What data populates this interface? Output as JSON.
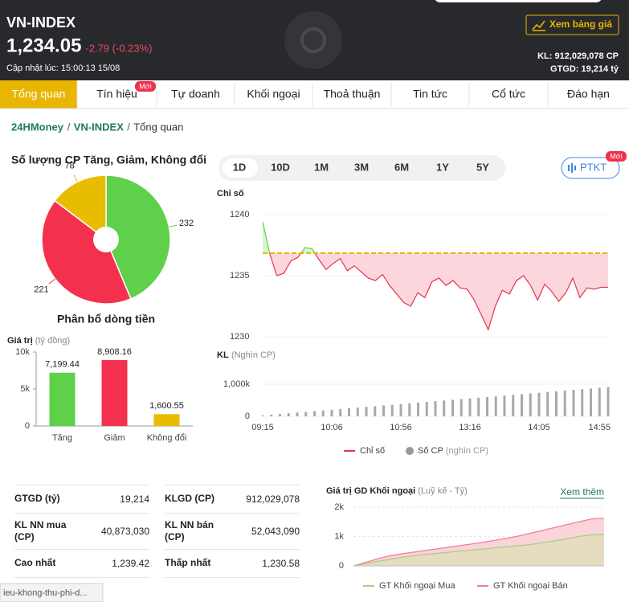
{
  "header": {
    "title": "VN-INDEX",
    "price": "1,234.05",
    "change": "-2.79 (-0.23%)",
    "updated": "Cập nhật lúc: 15:00:13 15/08",
    "button": "Xem bảng giá",
    "volume": "KL: 912,029,078 CP",
    "value": "GTGD: 19,214 tỷ"
  },
  "tabs": [
    "Tổng quan",
    "Tín hiệu",
    "Tự doanh",
    "Khối ngoại",
    "Thoả thuận",
    "Tin tức",
    "Cổ tức",
    "Đáo hạn"
  ],
  "tab_badge": "Mới",
  "breadcrumb": {
    "items": [
      "24HMoney",
      "VN-INDEX",
      "Tổng quan"
    ],
    "separator": "/"
  },
  "periods": [
    "1D",
    "10D",
    "1M",
    "3M",
    "6M",
    "1Y",
    "5Y"
  ],
  "ptkt": "PTKT",
  "ptkt_badge": "Mới",
  "stats": [
    [
      "GTGD (tỷ)",
      "19,214",
      "KLGD (CP)",
      "912,029,078"
    ],
    [
      "KL NN mua (CP)",
      "40,873,030",
      "KL NN bán (CP)",
      "52,043,090"
    ],
    [
      "Cao nhất",
      "1,239.42",
      "Thấp nhất",
      "1,230.58"
    ]
  ],
  "status_url": "ieu-khong-thu-phi-d...",
  "chart_data": [
    {
      "type": "pie",
      "title": "Số lượng CP Tăng, Giảm, Không đổi",
      "values": [
        232,
        221,
        78
      ],
      "colors": [
        "#5fd04a",
        "#f4304f",
        "#e8bd00"
      ]
    },
    {
      "type": "bar",
      "title": "Phân bổ dòng tiền",
      "ylabel": "Giá trị",
      "yunit": "(tỷ đồng)",
      "categories": [
        "Tăng",
        "Giảm",
        "Không đổi"
      ],
      "values": [
        7199.44,
        8908.16,
        1600.55
      ],
      "value_labels": [
        "7,199.44",
        "8,908.16",
        "1,600.55"
      ],
      "colors": [
        "#5fd04a",
        "#f4304f",
        "#e8bd00"
      ],
      "ylim": [
        0,
        10000
      ],
      "yticks": [
        0,
        {
          "value": 5000,
          "label": "5k"
        },
        {
          "value": 10000,
          "label": "10k"
        }
      ]
    },
    {
      "type": "line",
      "ylabel": "Chỉ số",
      "xtick_labels": [
        "09:15",
        "10:06",
        "10:56",
        "13:16",
        "14:05",
        "14:55"
      ],
      "series": [
        {
          "name": "Chỉ số",
          "color": "#e8334a",
          "values": [
            1239.42,
            1236.8,
            1235.0,
            1235.2,
            1236.2,
            1236.5,
            1237.3,
            1237.2,
            1236.3,
            1235.5,
            1236.0,
            1236.4,
            1235.4,
            1235.8,
            1235.3,
            1234.8,
            1234.6,
            1235.1,
            1234.2,
            1233.5,
            1232.8,
            1232.5,
            1233.6,
            1233.2,
            1234.5,
            1234.8,
            1234.2,
            1234.6,
            1234.0,
            1233.9,
            1233.0,
            1231.8,
            1230.58,
            1232.5,
            1233.8,
            1233.5,
            1234.6,
            1235.0,
            1234.2,
            1233.0,
            1234.3,
            1233.7,
            1232.9,
            1233.6,
            1234.8,
            1233.2,
            1234.0,
            1233.9,
            1234.05,
            1234.05
          ]
        }
      ],
      "reference": 1236.84,
      "reference_color": "#e8b600",
      "ylim": [
        1230,
        1240
      ],
      "yticks": [
        1230,
        1235,
        1240
      ]
    },
    {
      "type": "bar",
      "ylabel": "KL",
      "yunit": "(Nghìn CP)",
      "series": [
        {
          "name": "Số CP",
          "unit": "(nghìn CP)",
          "color": "#a9a9a9",
          "values": [
            30000,
            52000,
            74000,
            96000,
            118000,
            140000,
            162000,
            184000,
            206000,
            228000,
            250000,
            272000,
            294000,
            316000,
            338000,
            360000,
            382000,
            404000,
            426000,
            448000,
            470000,
            492000,
            514000,
            536000,
            558000,
            580000,
            602000,
            624000,
            646000,
            668000,
            690000,
            712000,
            734000,
            756000,
            778000,
            800000,
            822000,
            844000,
            866000,
            888000,
            912029
          ]
        }
      ],
      "ylim": [
        0,
        1250000
      ],
      "yticks": [
        0,
        {
          "value": 1000000,
          "label": "1,000k"
        }
      ]
    },
    {
      "type": "area",
      "title": "Giá trị GD Khối ngoại",
      "subtitle": "(Luỹ kế - Tỷ)",
      "link": "Xem thêm",
      "ylim": [
        0,
        2000
      ],
      "yticks": [
        0,
        {
          "value": 1000,
          "label": "1k"
        },
        {
          "value": 2000,
          "label": "2k"
        }
      ],
      "series": [
        {
          "name": "GT Khối ngoại Mua",
          "color": "#a8cf86",
          "fill": "#e6dcc0",
          "values": [
            0,
            80,
            160,
            230,
            300,
            350,
            400,
            440,
            480,
            520,
            560,
            600,
            640,
            680,
            720,
            780,
            850,
            920,
            1000,
            1060,
            1080
          ]
        },
        {
          "name": "GT Khối ngoại Bán",
          "color": "#f07f98",
          "fill": "#fbd3da",
          "values": [
            0,
            120,
            250,
            350,
            420,
            480,
            540,
            600,
            660,
            720,
            780,
            850,
            920,
            1000,
            1100,
            1200,
            1300,
            1400,
            1500,
            1600,
            1620
          ]
        }
      ]
    }
  ]
}
